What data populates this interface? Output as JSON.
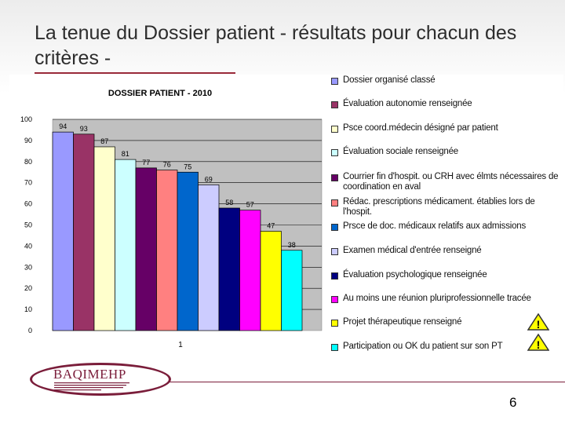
{
  "slide": {
    "title": "La tenue du Dossier patient - résultats pour chacun des critères -",
    "page_number": "6",
    "logo_text": "BAQIMEHP"
  },
  "chart_data": {
    "type": "bar",
    "title": "DOSSIER PATIENT - 2010",
    "categories": [
      "1"
    ],
    "ylim": [
      0,
      100
    ],
    "yticks": [
      0,
      10,
      20,
      30,
      40,
      50,
      60,
      70,
      80,
      90,
      100
    ],
    "grid": true,
    "legend_position": "right",
    "series": [
      {
        "name": "Dossier organisé classé",
        "values": [
          94
        ],
        "color": "#9999ff"
      },
      {
        "name": "Évaluation autonomie renseignée",
        "values": [
          93
        ],
        "color": "#993366"
      },
      {
        "name": "Psce coord.médecin désigné par patient",
        "values": [
          87
        ],
        "color": "#ffffcc"
      },
      {
        "name": "Évaluation sociale renseignée",
        "values": [
          81
        ],
        "color": "#ccffff"
      },
      {
        "name": "Courrier fin d'hospit. ou CRH avec élmts nécessaires de coordination en aval",
        "values": [
          77
        ],
        "color": "#660066"
      },
      {
        "name": "Rédac. prescriptions médicament. établies lors de l'hospit.",
        "values": [
          76
        ],
        "color": "#ff8080"
      },
      {
        "name": "Prsce de doc. médicaux relatifs aux admissions",
        "values": [
          75
        ],
        "color": "#0066cc"
      },
      {
        "name": "Examen médical d'entrée renseigné",
        "values": [
          69
        ],
        "color": "#ccccff"
      },
      {
        "name": "Évaluation psychologique renseignée",
        "values": [
          58
        ],
        "color": "#000080"
      },
      {
        "name": "Au moins une réunion pluriprofessionnelle tracée",
        "values": [
          57
        ],
        "color": "#ff00ff"
      },
      {
        "name": "Projet thérapeutique renseigné",
        "values": [
          47
        ],
        "color": "#ffff00"
      },
      {
        "name": "Participation ou OK du patient sur son PT",
        "values": [
          38
        ],
        "color": "#00ffff"
      }
    ],
    "warnings": [
      {
        "series": "Projet thérapeutique renseigné",
        "icon": "warning-triangle-icon",
        "color": "#ffff00"
      },
      {
        "series": "Participation ou OK du patient sur son PT",
        "icon": "warning-triangle-icon",
        "color": "#ffff00"
      }
    ]
  }
}
